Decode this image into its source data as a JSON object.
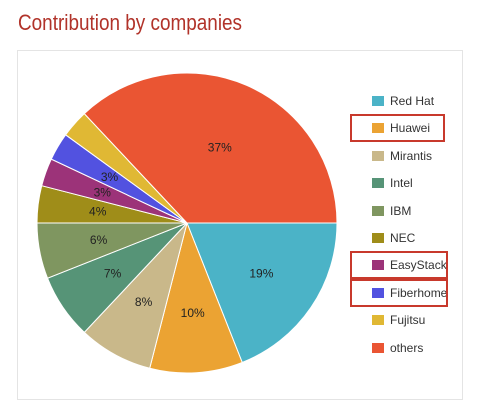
{
  "title": "Contribution by companies",
  "chart_data": {
    "type": "pie",
    "title": "Contribution by companies",
    "slices": [
      {
        "label": "Red Hat",
        "value": 19,
        "display": "19%",
        "color": "#4bb3c7"
      },
      {
        "label": "Huawei",
        "value": 10,
        "display": "10%",
        "color": "#eba333"
      },
      {
        "label": "Mirantis",
        "value": 8,
        "display": "8%",
        "color": "#c9b88a"
      },
      {
        "label": "Intel",
        "value": 7,
        "display": "7%",
        "color": "#569477"
      },
      {
        "label": "IBM",
        "value": 6,
        "display": "6%",
        "color": "#7f9660"
      },
      {
        "label": "NEC",
        "value": 4,
        "display": "4%",
        "color": "#9f8d19"
      },
      {
        "label": "EasyStack",
        "value": 3,
        "display": "3%",
        "color": "#9c3379"
      },
      {
        "label": "Fiberhome",
        "value": 3,
        "display": "3%",
        "color": "#5252e0"
      },
      {
        "label": "Fujitsu",
        "value": 3,
        "display": "",
        "color": "#e0b834"
      },
      {
        "label": "others",
        "value": 37,
        "display": "37%",
        "color": "#ea5533"
      }
    ],
    "legend_position": "right",
    "highlighted": [
      "Huawei",
      "EasyStack",
      "Fiberhome"
    ],
    "highlight_color": "#c8392c"
  }
}
